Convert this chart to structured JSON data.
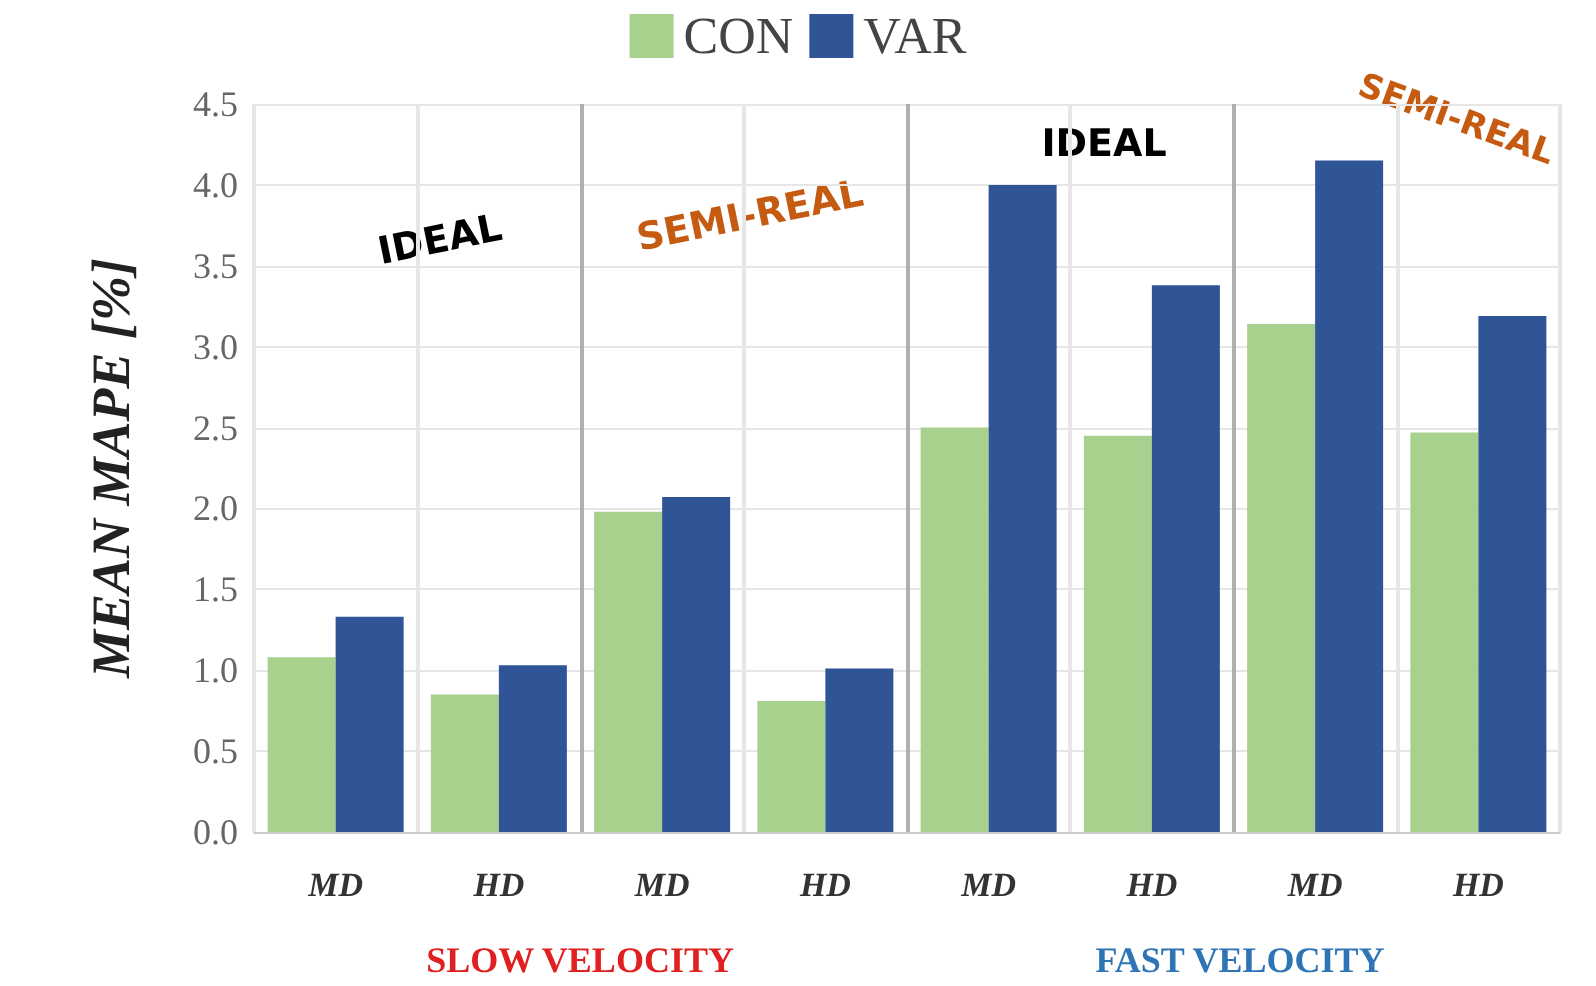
{
  "chart_data": {
    "type": "bar",
    "categories": [
      "MD",
      "HD",
      "MD",
      "HD",
      "MD",
      "HD",
      "MD",
      "HD"
    ],
    "series": [
      {
        "name": "CON",
        "color": "#a9d18e",
        "values": [
          1.08,
          0.85,
          1.98,
          0.81,
          2.5,
          2.45,
          3.14,
          2.47
        ]
      },
      {
        "name": "VAR",
        "color": "#2f5597",
        "values": [
          1.33,
          1.03,
          2.07,
          1.01,
          4.0,
          3.38,
          4.15,
          3.19
        ]
      }
    ],
    "ylabel": "MEAN MAPE [%]",
    "ylim": [
      0,
      4.5
    ],
    "yticks": [
      {
        "value": 0,
        "label": "0.0"
      },
      0.5,
      {
        "value": 1,
        "label": "1.0"
      },
      1.5,
      {
        "value": 2,
        "label": "2.0"
      },
      2.5,
      {
        "value": 3,
        "label": "3.0"
      },
      3.5,
      {
        "value": 4,
        "label": "4.0"
      },
      4.5
    ],
    "grid": true,
    "legend": "top",
    "annotations": [
      "IDEAL",
      "SEMI-REAL",
      "IDEAL",
      "SEMI-REAL",
      "SLOW VELOCITY",
      "FAST VELOCITY"
    ]
  }
}
